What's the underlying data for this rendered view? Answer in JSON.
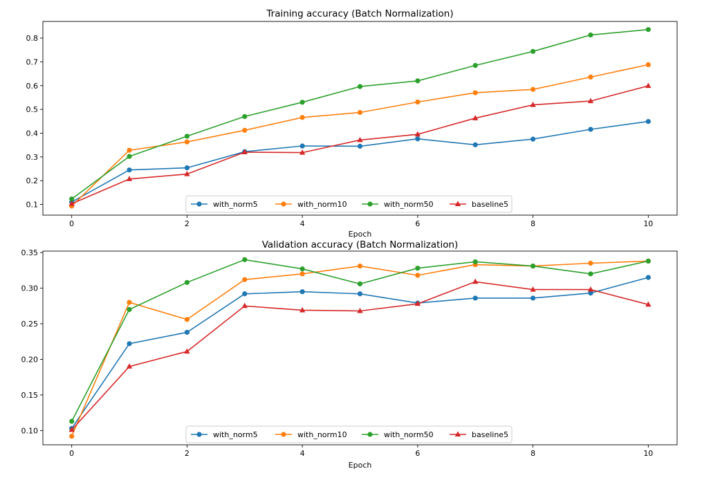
{
  "chart_data": [
    {
      "type": "line",
      "title": "Training accuracy (Batch Normalization)",
      "xlabel": "Epoch",
      "ylabel": "",
      "x": [
        0,
        1,
        2,
        3,
        4,
        5,
        6,
        7,
        8,
        9,
        10
      ],
      "xlim": [
        -0.5,
        10.5
      ],
      "ylim": [
        0.055,
        0.87
      ],
      "xticks": [
        "0",
        "2",
        "4",
        "6",
        "8",
        "10"
      ],
      "yticks": [
        "0.1",
        "0.2",
        "0.3",
        "0.4",
        "0.5",
        "0.6",
        "0.7",
        "0.8"
      ],
      "grid": false,
      "legend": "bottom-center",
      "series": [
        {
          "name": "with_norm5",
          "color": "#1f77b4",
          "marker": "circle",
          "values": [
            0.11,
            0.245,
            0.254,
            0.322,
            0.346,
            0.345,
            0.376,
            0.351,
            0.375,
            0.416,
            0.449
          ]
        },
        {
          "name": "with_norm10",
          "color": "#ff7f0e",
          "marker": "circle",
          "values": [
            0.093,
            0.328,
            0.363,
            0.412,
            0.466,
            0.487,
            0.531,
            0.57,
            0.584,
            0.636,
            0.688
          ]
        },
        {
          "name": "with_norm50",
          "color": "#2ca02c",
          "marker": "circle",
          "values": [
            0.123,
            0.302,
            0.387,
            0.47,
            0.53,
            0.596,
            0.62,
            0.685,
            0.744,
            0.813,
            0.836
          ]
        },
        {
          "name": "baseline5",
          "color": "#d62728",
          "marker": "triangle",
          "values": [
            0.103,
            0.207,
            0.228,
            0.32,
            0.318,
            0.371,
            0.395,
            0.463,
            0.519,
            0.535,
            0.599
          ]
        }
      ]
    },
    {
      "type": "line",
      "title": "Validation accuracy (Batch Normalization)",
      "xlabel": "Epoch",
      "ylabel": "",
      "x": [
        0,
        1,
        2,
        3,
        4,
        5,
        6,
        7,
        8,
        9,
        10
      ],
      "xlim": [
        -0.5,
        10.5
      ],
      "ylim": [
        0.08,
        0.352
      ],
      "xticks": [
        "0",
        "2",
        "4",
        "6",
        "8",
        "10"
      ],
      "yticks": [
        "0.10",
        "0.15",
        "0.20",
        "0.25",
        "0.30",
        "0.35"
      ],
      "grid": false,
      "legend": "bottom-center",
      "series": [
        {
          "name": "with_norm5",
          "color": "#1f77b4",
          "marker": "circle",
          "values": [
            0.103,
            0.222,
            0.238,
            0.292,
            0.295,
            0.292,
            0.279,
            0.286,
            0.286,
            0.293,
            0.315
          ]
        },
        {
          "name": "with_norm10",
          "color": "#ff7f0e",
          "marker": "circle",
          "values": [
            0.092,
            0.28,
            0.256,
            0.312,
            0.32,
            0.331,
            0.318,
            0.333,
            0.331,
            0.335,
            0.338
          ]
        },
        {
          "name": "with_norm50",
          "color": "#2ca02c",
          "marker": "circle",
          "values": [
            0.113,
            0.27,
            0.308,
            0.34,
            0.327,
            0.306,
            0.328,
            0.337,
            0.331,
            0.32,
            0.338
          ]
        },
        {
          "name": "baseline5",
          "color": "#d62728",
          "marker": "triangle",
          "values": [
            0.101,
            0.19,
            0.211,
            0.275,
            0.269,
            0.268,
            0.278,
            0.309,
            0.298,
            0.298,
            0.277
          ]
        }
      ]
    }
  ]
}
